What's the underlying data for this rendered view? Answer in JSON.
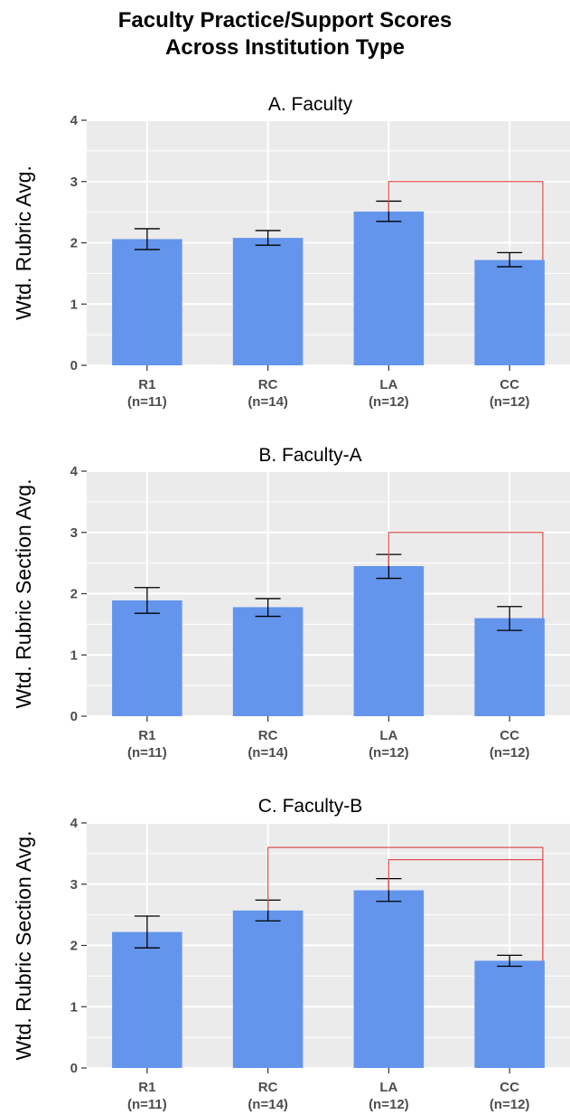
{
  "title_lines": [
    "Faculty Practice/Support Scores",
    "Across Institution Type"
  ],
  "colors": {
    "bar": "#6495ED",
    "panel_bg": "#EBEBEB",
    "grid": "#FFFFFF",
    "sig": "#E05050",
    "error_bar": "#000000"
  },
  "chart_data": [
    {
      "type": "bar",
      "title": "A. Faculty",
      "ylabel": "Wtd. Rubric Avg.",
      "ylim": [
        0,
        4
      ],
      "yticks": [
        "0",
        "1",
        "2",
        "3",
        "4"
      ],
      "categories": [
        "R1",
        "RC",
        "LA",
        "CC"
      ],
      "category_n": [
        "(n=11)",
        "(n=14)",
        "(n=12)",
        "(n=12)"
      ],
      "values": [
        2.06,
        2.08,
        2.51,
        1.72
      ],
      "error_low": [
        1.89,
        1.96,
        2.35,
        1.61
      ],
      "error_high": [
        2.23,
        2.2,
        2.68,
        1.84
      ],
      "significance": [
        {
          "from": "LA",
          "to": "CC",
          "level": 3.0
        }
      ],
      "grid": true
    },
    {
      "type": "bar",
      "title": "B. Faculty-A",
      "ylabel": "Wtd. Rubric Section Avg.",
      "ylim": [
        0,
        4
      ],
      "yticks": [
        "0",
        "1",
        "2",
        "3",
        "4"
      ],
      "categories": [
        "R1",
        "RC",
        "LA",
        "CC"
      ],
      "category_n": [
        "(n=11)",
        "(n=14)",
        "(n=12)",
        "(n=12)"
      ],
      "values": [
        1.89,
        1.78,
        2.45,
        1.6
      ],
      "error_low": [
        1.68,
        1.63,
        2.25,
        1.4
      ],
      "error_high": [
        2.1,
        1.92,
        2.64,
        1.79
      ],
      "significance": [
        {
          "from": "LA",
          "to": "CC",
          "level": 3.0
        }
      ],
      "grid": true
    },
    {
      "type": "bar",
      "title": "C. Faculty-B",
      "ylabel": "Wtd. Rubric Section Avg.",
      "ylim": [
        0,
        4
      ],
      "yticks": [
        "0",
        "1",
        "2",
        "3",
        "4"
      ],
      "categories": [
        "R1",
        "RC",
        "LA",
        "CC"
      ],
      "category_n": [
        "(n=11)",
        "(n=14)",
        "(n=12)",
        "(n=12)"
      ],
      "values": [
        2.22,
        2.57,
        2.9,
        1.75
      ],
      "error_low": [
        1.96,
        2.4,
        2.72,
        1.66
      ],
      "error_high": [
        2.48,
        2.74,
        3.09,
        1.84
      ],
      "significance": [
        {
          "from": "RC",
          "to": "CC",
          "level": 3.6
        },
        {
          "from": "LA",
          "to": "CC",
          "level": 3.4
        }
      ],
      "grid": true
    }
  ]
}
